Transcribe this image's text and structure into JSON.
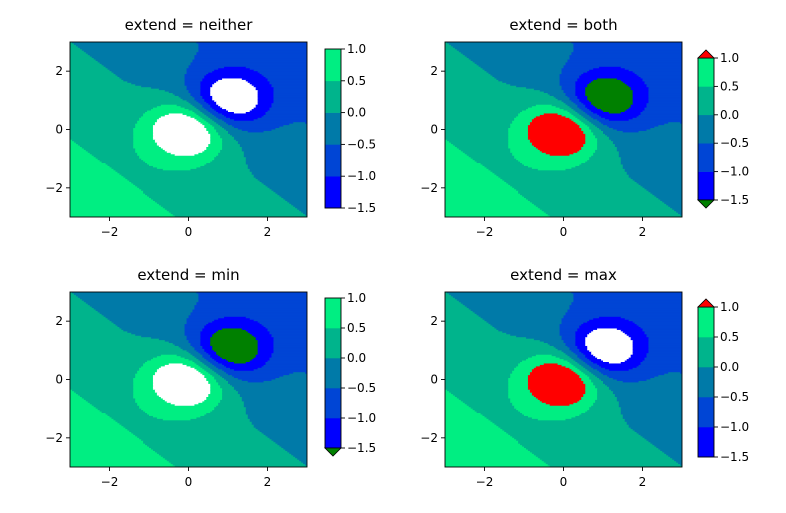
{
  "chart_data": [
    {
      "type": "contourf",
      "title": "extend = neither",
      "extend": "neither",
      "xlim": [
        -3,
        3
      ],
      "ylim": [
        -3,
        3
      ],
      "xticks": [
        -2,
        0,
        2
      ],
      "yticks": [
        -2,
        0,
        2
      ],
      "xtick_labels": [
        "−2",
        "0",
        "2"
      ],
      "ytick_labels": [
        "−2",
        "0",
        "2"
      ],
      "colorbar": {
        "levels": [
          -1.5,
          -1.0,
          -0.5,
          0.0,
          0.5,
          1.0
        ],
        "tick_labels": [
          "−1.5",
          "−1.0",
          "−0.5",
          "0.0",
          "0.5",
          "1.0"
        ],
        "band_colors": [
          "#0000ff",
          "#0045d5",
          "#007aa8",
          "#00b48c",
          "#00ee82"
        ],
        "under_color": "#008000",
        "over_color": "#ff0000"
      }
    },
    {
      "type": "contourf",
      "title": "extend = both",
      "extend": "both",
      "xlim": [
        -3,
        3
      ],
      "ylim": [
        -3,
        3
      ],
      "xticks": [
        -2,
        0,
        2
      ],
      "yticks": [
        -2,
        0,
        2
      ],
      "xtick_labels": [
        "−2",
        "0",
        "2"
      ],
      "ytick_labels": [
        "−2",
        "0",
        "2"
      ],
      "colorbar": {
        "levels": [
          -1.5,
          -1.0,
          -0.5,
          0.0,
          0.5,
          1.0
        ],
        "tick_labels": [
          "−1.5",
          "−1.0",
          "−0.5",
          "0.0",
          "0.5",
          "1.0"
        ],
        "band_colors": [
          "#0000ff",
          "#0045d5",
          "#007aa8",
          "#00b48c",
          "#00ee82"
        ],
        "under_color": "#008000",
        "over_color": "#ff0000"
      }
    },
    {
      "type": "contourf",
      "title": "extend = min",
      "extend": "min",
      "xlim": [
        -3,
        3
      ],
      "ylim": [
        -3,
        3
      ],
      "xticks": [
        -2,
        0,
        2
      ],
      "yticks": [
        -2,
        0,
        2
      ],
      "xtick_labels": [
        "−2",
        "0",
        "2"
      ],
      "ytick_labels": [
        "−2",
        "0",
        "2"
      ],
      "colorbar": {
        "levels": [
          -1.5,
          -1.0,
          -0.5,
          0.0,
          0.5,
          1.0
        ],
        "tick_labels": [
          "−1.5",
          "−1.0",
          "−0.5",
          "0.0",
          "0.5",
          "1.0"
        ],
        "band_colors": [
          "#0000ff",
          "#0045d5",
          "#007aa8",
          "#00b48c",
          "#00ee82"
        ],
        "under_color": "#008000",
        "over_color": "#ff0000"
      }
    },
    {
      "type": "contourf",
      "title": "extend = max",
      "extend": "max",
      "xlim": [
        -3,
        3
      ],
      "ylim": [
        -3,
        3
      ],
      "xticks": [
        -2,
        0,
        2
      ],
      "yticks": [
        -2,
        0,
        2
      ],
      "xtick_labels": [
        "−2",
        "0",
        "2"
      ],
      "ytick_labels": [
        "−2",
        "0",
        "2"
      ],
      "colorbar": {
        "levels": [
          -1.5,
          -1.0,
          -0.5,
          0.0,
          0.5,
          1.0
        ],
        "tick_labels": [
          "−1.5",
          "−1.0",
          "−0.5",
          "0.0",
          "0.5",
          "1.0"
        ],
        "band_colors": [
          "#0000ff",
          "#0045d5",
          "#007aa8",
          "#00b48c",
          "#00ee82"
        ],
        "under_color": "#008000",
        "over_color": "#ff0000"
      }
    }
  ]
}
